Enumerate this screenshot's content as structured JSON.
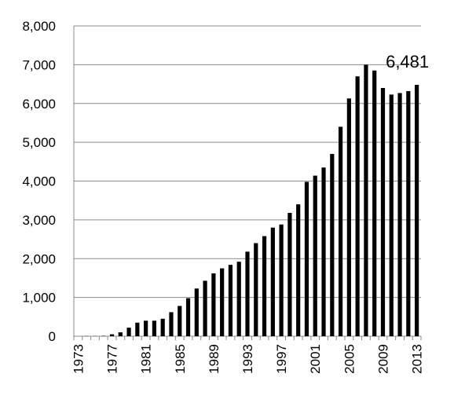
{
  "chart_data": {
    "type": "bar",
    "categories": [
      "1973",
      null,
      null,
      null,
      "1977",
      null,
      null,
      null,
      "1981",
      null,
      null,
      null,
      "1985",
      null,
      null,
      null,
      "1989",
      null,
      null,
      null,
      "1993",
      null,
      null,
      null,
      "1997",
      null,
      null,
      null,
      "2001",
      null,
      null,
      null,
      "2005",
      null,
      null,
      null,
      "2009",
      null,
      null,
      null,
      "2013"
    ],
    "values": [
      0,
      5,
      5,
      10,
      50,
      100,
      220,
      350,
      400,
      400,
      450,
      620,
      780,
      980,
      1230,
      1430,
      1620,
      1750,
      1840,
      1920,
      2180,
      2400,
      2580,
      2800,
      2880,
      3180,
      3400,
      3980,
      4140,
      4350,
      4700,
      5400,
      6130,
      6700,
      7000,
      6850,
      6400,
      6230,
      6270,
      6320,
      6481
    ],
    "value_labels": [
      null,
      null,
      null,
      null,
      null,
      null,
      null,
      null,
      null,
      null,
      null,
      null,
      null,
      null,
      null,
      null,
      null,
      null,
      null,
      null,
      null,
      null,
      null,
      null,
      null,
      null,
      null,
      null,
      null,
      null,
      null,
      null,
      null,
      null,
      null,
      null,
      null,
      null,
      null,
      null,
      "6,481"
    ],
    "color": "#000000",
    "ylim": [
      0,
      8000
    ],
    "yticks": [
      0,
      {
        "value": 1000,
        "label": "1,000"
      },
      {
        "value": 2000,
        "label": "2,000"
      },
      {
        "value": 3000,
        "label": "3,000"
      },
      {
        "value": 4000,
        "label": "4,000"
      },
      {
        "value": 5000,
        "label": "5,000"
      },
      {
        "value": 6000,
        "label": "6,000"
      },
      {
        "value": 7000,
        "label": "7,000"
      },
      {
        "value": 8000,
        "label": "8,000"
      }
    ],
    "grid": true
  }
}
